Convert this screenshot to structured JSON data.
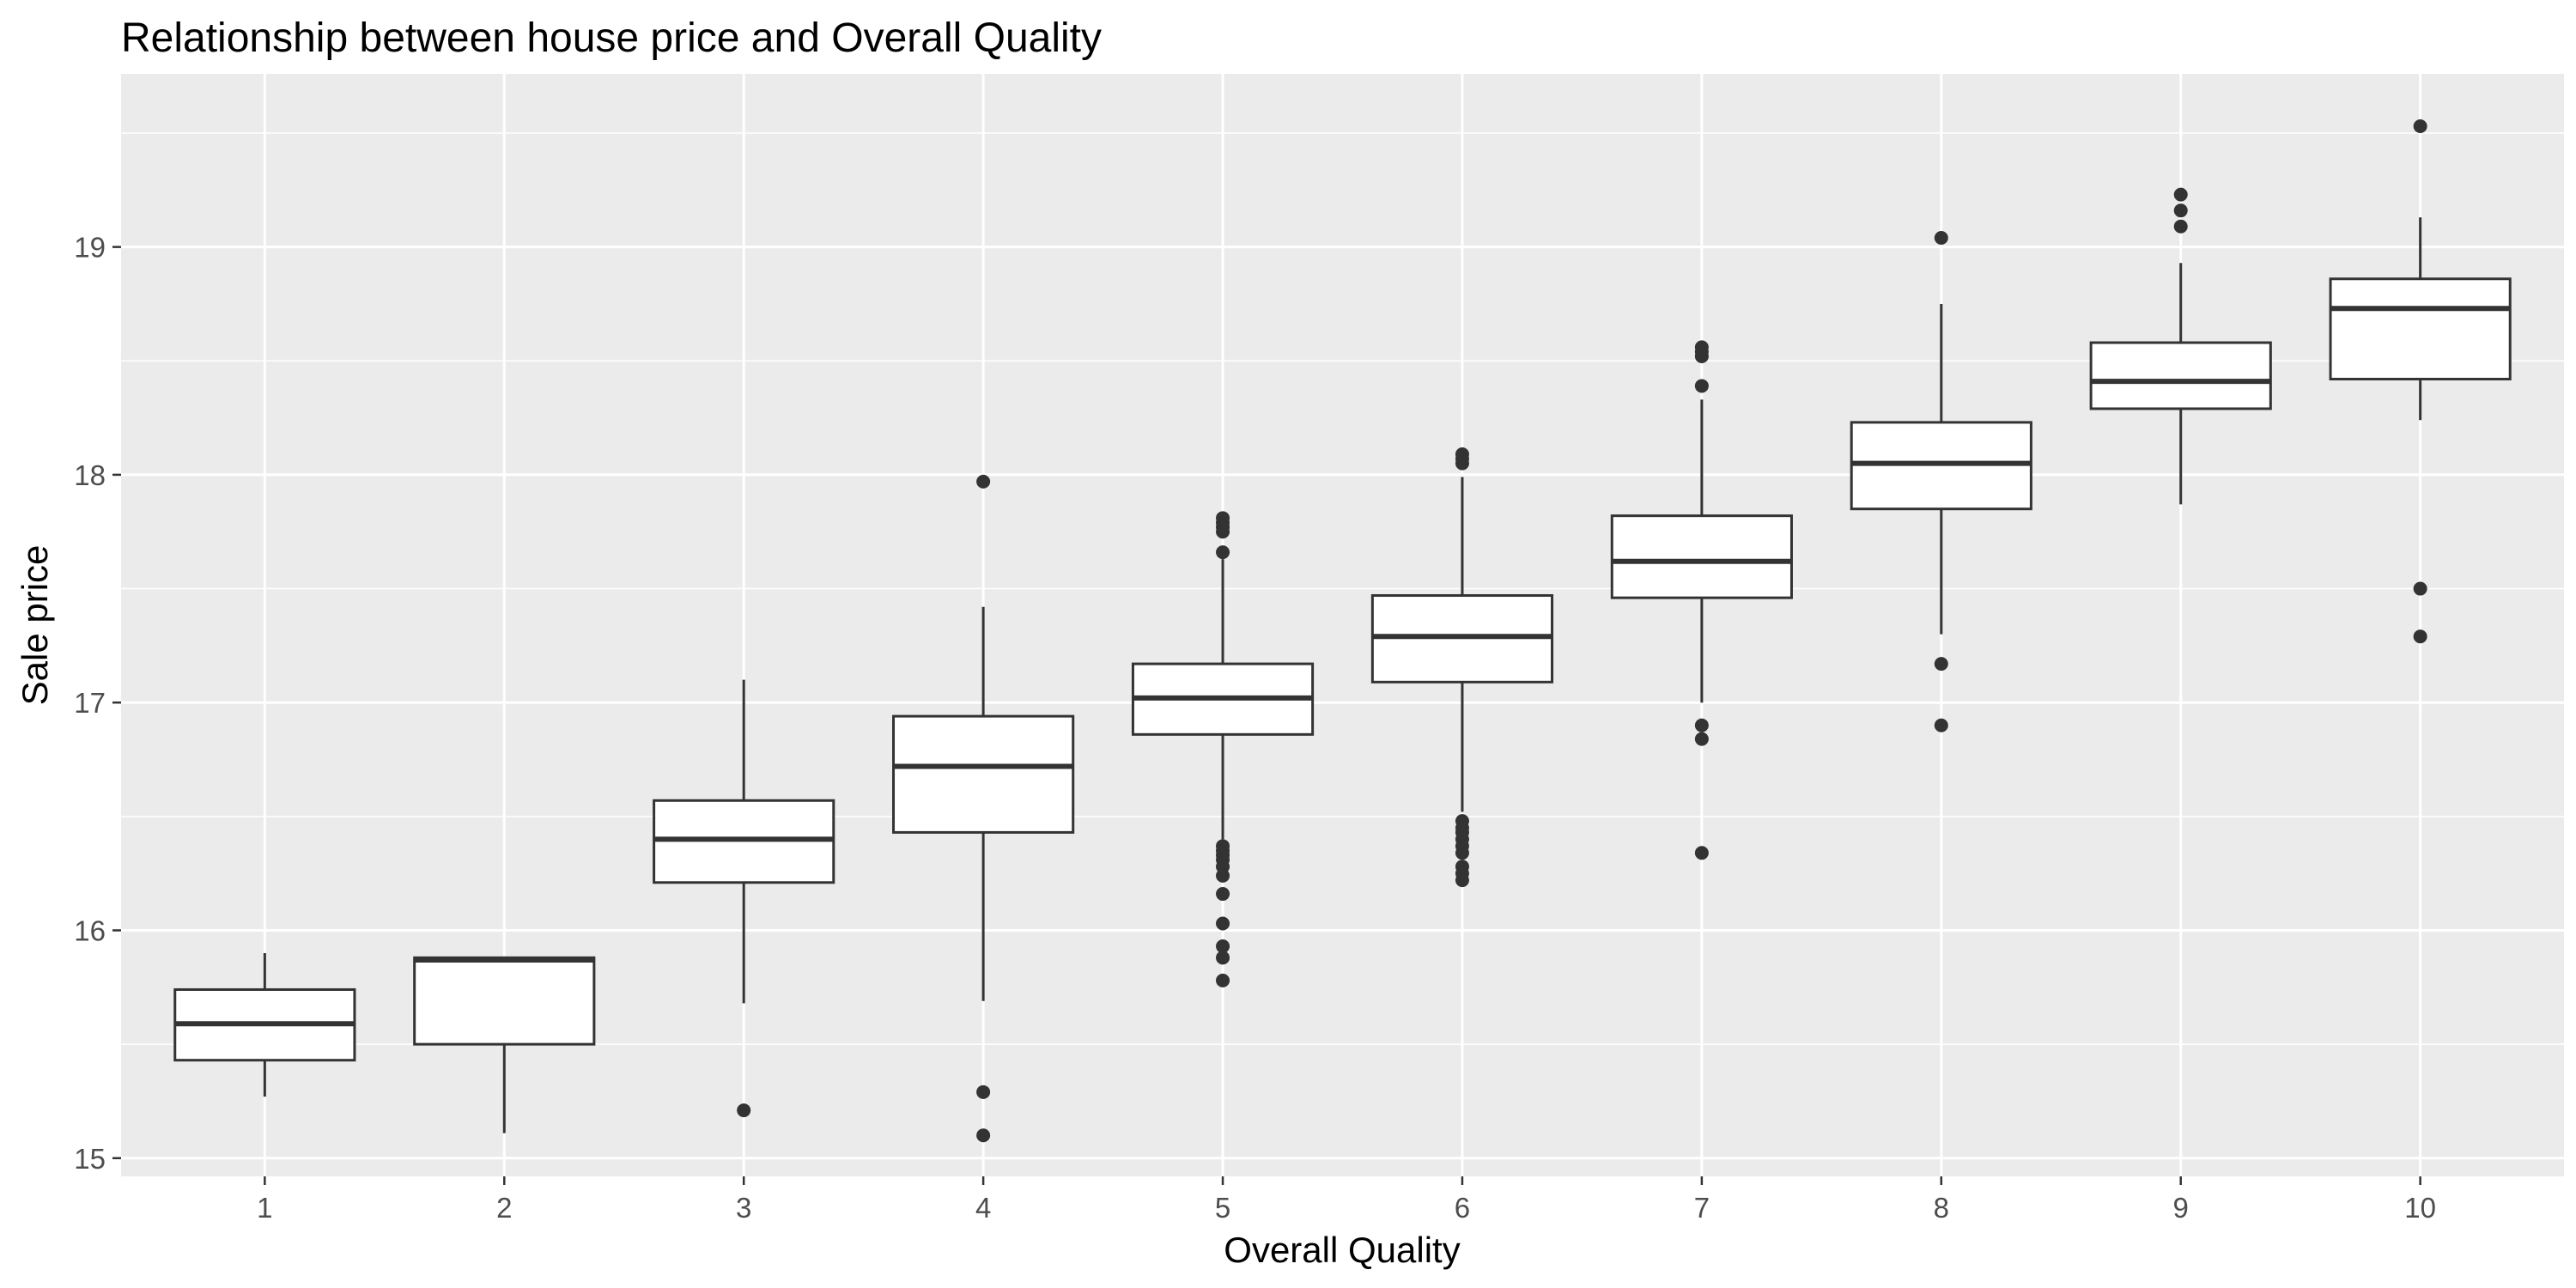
{
  "chart_data": {
    "type": "boxplot",
    "title": "Relationship between house price and Overall Quality",
    "xlabel": "Overall Quality",
    "ylabel": "Sale price",
    "categories": [
      "1",
      "2",
      "3",
      "4",
      "5",
      "6",
      "7",
      "8",
      "9",
      "10"
    ],
    "ylim": [
      14.92,
      19.76
    ],
    "yticks": [
      15,
      16,
      17,
      18,
      19
    ],
    "grid": true,
    "background": "#ebebeb",
    "grid_color": "#ffffff",
    "box_fill": "#ffffff",
    "line_color": "#333333",
    "boxes": [
      {
        "category": "1",
        "lower_whisker": 15.27,
        "q1": 15.43,
        "median": 15.59,
        "q3": 15.74,
        "upper_whisker": 15.9,
        "outliers": []
      },
      {
        "category": "2",
        "lower_whisker": 15.11,
        "q1": 15.5,
        "median": 15.87,
        "q3": 15.88,
        "upper_whisker": 15.88,
        "outliers": []
      },
      {
        "category": "3",
        "lower_whisker": 15.68,
        "q1": 16.21,
        "median": 16.4,
        "q3": 16.57,
        "upper_whisker": 17.1,
        "outliers": [
          15.21
        ]
      },
      {
        "category": "4",
        "lower_whisker": 15.69,
        "q1": 16.43,
        "median": 16.72,
        "q3": 16.94,
        "upper_whisker": 17.42,
        "outliers": [
          17.97,
          15.29,
          15.1
        ]
      },
      {
        "category": "5",
        "lower_whisker": 16.4,
        "q1": 16.86,
        "median": 17.02,
        "q3": 17.17,
        "upper_whisker": 17.63,
        "outliers": [
          17.81,
          17.79,
          17.77,
          17.75,
          17.66,
          16.37,
          16.35,
          16.33,
          16.31,
          16.28,
          16.24,
          16.16,
          16.03,
          15.93,
          15.88,
          15.78
        ]
      },
      {
        "category": "6",
        "lower_whisker": 16.52,
        "q1": 17.09,
        "median": 17.29,
        "q3": 17.47,
        "upper_whisker": 17.99,
        "outliers": [
          18.09,
          18.07,
          18.05,
          16.48,
          16.45,
          16.43,
          16.4,
          16.37,
          16.34,
          16.28,
          16.25,
          16.22
        ]
      },
      {
        "category": "7",
        "lower_whisker": 17.0,
        "q1": 17.46,
        "median": 17.62,
        "q3": 17.82,
        "upper_whisker": 18.33,
        "outliers": [
          18.56,
          18.54,
          18.52,
          18.39,
          16.9,
          16.84,
          16.34
        ]
      },
      {
        "category": "8",
        "lower_whisker": 17.3,
        "q1": 17.85,
        "median": 18.05,
        "q3": 18.23,
        "upper_whisker": 18.75,
        "outliers": [
          19.04,
          17.17,
          16.9
        ]
      },
      {
        "category": "9",
        "lower_whisker": 17.87,
        "q1": 18.29,
        "median": 18.41,
        "q3": 18.58,
        "upper_whisker": 18.93,
        "outliers": [
          19.23,
          19.16,
          19.09
        ]
      },
      {
        "category": "10",
        "lower_whisker": 18.24,
        "q1": 18.42,
        "median": 18.73,
        "q3": 18.86,
        "upper_whisker": 19.13,
        "outliers": [
          19.53,
          17.5,
          17.29
        ]
      }
    ]
  }
}
